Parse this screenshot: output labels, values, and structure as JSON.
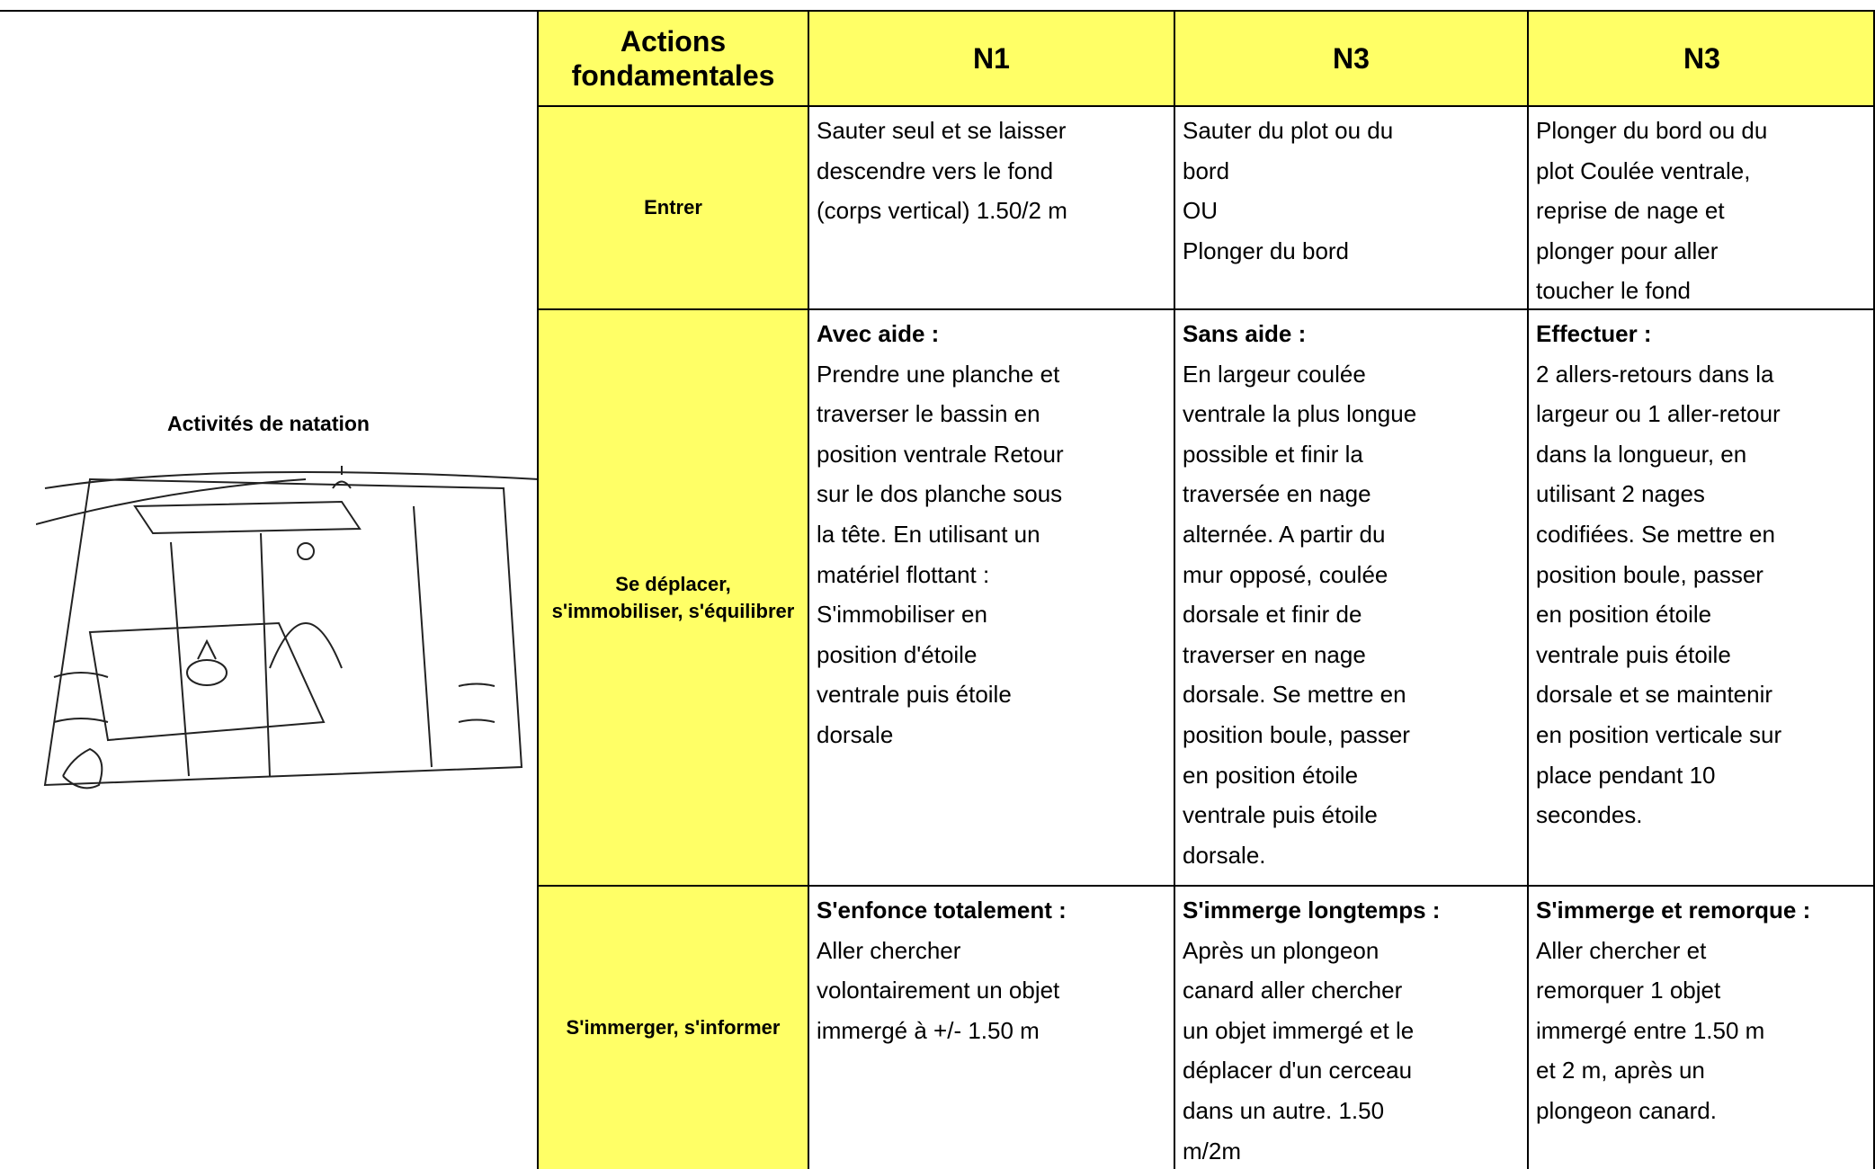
{
  "left": {
    "label": "Activités de natation"
  },
  "header": [
    "Actions fondamentales",
    "N1",
    "N3",
    "N3"
  ],
  "rows": [
    {
      "action": "Entrer",
      "cells": [
        {
          "lines": [
            "Sauter seul et se laisser",
            "descendre vers le fond",
            "(corps vertical) 1.50/2 m"
          ]
        },
        {
          "lines": [
            "Sauter du plot ou du",
            "bord",
            "OU",
            "Plonger du bord"
          ]
        },
        {
          "lines": [
            "Plonger du bord ou du",
            "plot Coulée ventrale,",
            "reprise de nage et",
            "plonger pour aller",
            "toucher le fond"
          ]
        }
      ]
    },
    {
      "action": "Se déplacer, s'immobiliser, s'équilibrer",
      "cells": [
        {
          "heading": "Avec aide :",
          "lines": [
            "Prendre une planche et",
            "traverser le bassin en",
            "position ventrale Retour",
            "sur le dos planche sous",
            "la tête. En utilisant un",
            "matériel flottant :",
            "S'immobiliser en",
            "position d'étoile",
            "ventrale puis étoile",
            "dorsale"
          ]
        },
        {
          "heading": "Sans aide :",
          "lines": [
            "En largeur coulée",
            "ventrale la plus longue",
            "possible et finir la",
            "traversée en nage",
            "alternée. A partir du",
            "mur opposé, coulée",
            "dorsale et finir de",
            "traverser en nage",
            "dorsale. Se mettre en",
            "position boule, passer",
            "en position étoile",
            "ventrale puis étoile",
            "dorsale."
          ]
        },
        {
          "heading": "Effectuer :",
          "lines": [
            "2 allers-retours dans la",
            "largeur ou 1 aller-retour",
            "dans la longueur, en",
            "utilisant 2 nages",
            "codifiées. Se mettre en",
            "position boule, passer",
            "en position étoile",
            "ventrale puis étoile",
            "dorsale et se maintenir",
            "en position verticale sur",
            "place pendant 10",
            "secondes."
          ]
        }
      ]
    },
    {
      "action": "S'immerger, s'informer",
      "cells": [
        {
          "heading": "S'enfonce totalement :",
          "lines": [
            "Aller chercher",
            "volontairement un objet",
            "immergé à +/- 1.50 m"
          ]
        },
        {
          "heading": "S'immerge longtemps :",
          "lines": [
            "Après un plongeon",
            "canard aller chercher",
            "un objet immergé et le",
            "déplacer d'un cerceau",
            "dans un autre. 1.50",
            "m/2m"
          ]
        },
        {
          "heading": "S'immerge et remorque :",
          "lines": [
            "Aller chercher et",
            "remorquer 1 objet",
            "immergé entre 1.50 m",
            "et 2 m, après un",
            "plongeon canard."
          ]
        }
      ]
    }
  ]
}
